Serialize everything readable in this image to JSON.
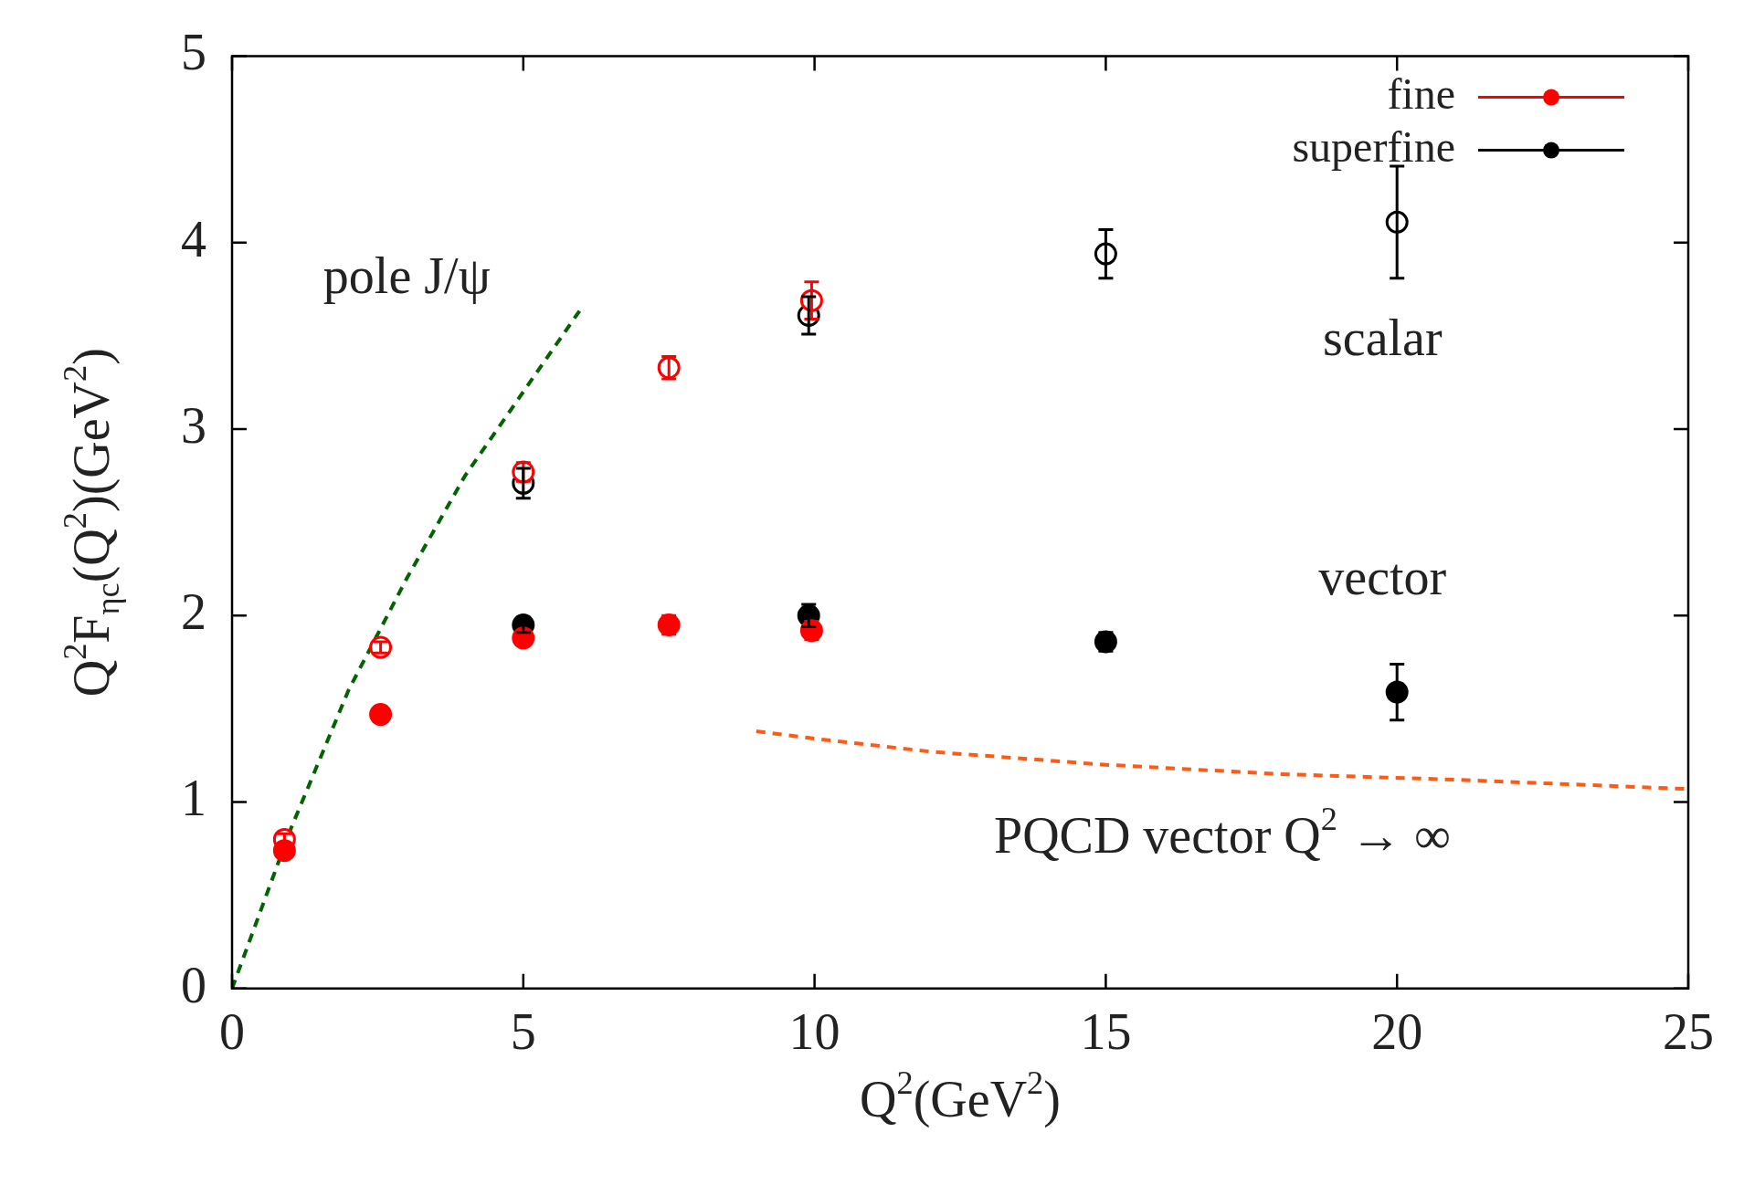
{
  "chart_data": {
    "type": "scatter",
    "xlabel": "Q$^{2}$(GeV$^{2}$)",
    "ylabel": "Q$^{2}$F$_{ηc}$(Q$^{2}$)(GeV$^{2}$)",
    "xlim": [
      0,
      25
    ],
    "xticks": [
      0,
      5,
      10,
      15,
      20,
      25
    ],
    "ylim": [
      0,
      5
    ],
    "yticks": [
      0,
      1,
      2,
      3,
      4,
      5
    ],
    "grid": false,
    "legend": "top right",
    "series": [
      {
        "name": "fine",
        "color": "#ff0000",
        "marker": "circle",
        "x": [
          0.9,
          2.55,
          5,
          7.5,
          9.95
        ],
        "values": [
          0.74,
          1.47,
          1.88,
          1.95,
          1.92
        ],
        "errors": [
          null,
          null,
          null,
          0.05,
          0.05
        ]
      },
      {
        "color": "#ff0000",
        "marker": "circle_open",
        "x": [
          0.9,
          2.55,
          5,
          7.5,
          9.95
        ],
        "values": [
          0.8,
          1.83,
          2.77,
          3.33,
          3.69
        ],
        "errors": [
          0.03,
          0.03,
          0.05,
          0.06,
          0.1
        ]
      },
      {
        "name": "superfine",
        "color": "#000000",
        "marker": "circle",
        "x": [
          5,
          9.9,
          15,
          20
        ],
        "values": [
          1.95,
          2.0,
          1.86,
          1.59
        ],
        "errors": [
          0.04,
          0.06,
          0.05,
          0.15
        ]
      },
      {
        "color": "#000000",
        "marker": "circle_open",
        "x": [
          5,
          9.9,
          15,
          20
        ],
        "values": [
          2.71,
          3.61,
          3.94,
          4.11
        ],
        "errors": [
          0.08,
          0.1,
          0.13,
          0.3
        ]
      },
      {
        "type": "line",
        "color": "#006400",
        "marker": "none",
        "line_style": "dashed",
        "x": [
          0,
          1,
          2,
          3,
          4,
          5,
          6
        ],
        "values": [
          0,
          0.85,
          1.6,
          2.2,
          2.75,
          3.2,
          3.65
        ]
      },
      {
        "type": "line",
        "color": "#ff5a14",
        "marker": "none",
        "line_style": "dashed",
        "x": [
          9,
          10,
          12,
          15,
          18,
          21,
          25
        ],
        "values": [
          1.38,
          1.34,
          1.27,
          1.2,
          1.15,
          1.12,
          1.07
        ]
      }
    ],
    "annotations": [
      "pole J/ψ",
      "scalar",
      "vector",
      "PQCD vector Q$^{2}$ → ∞"
    ]
  }
}
